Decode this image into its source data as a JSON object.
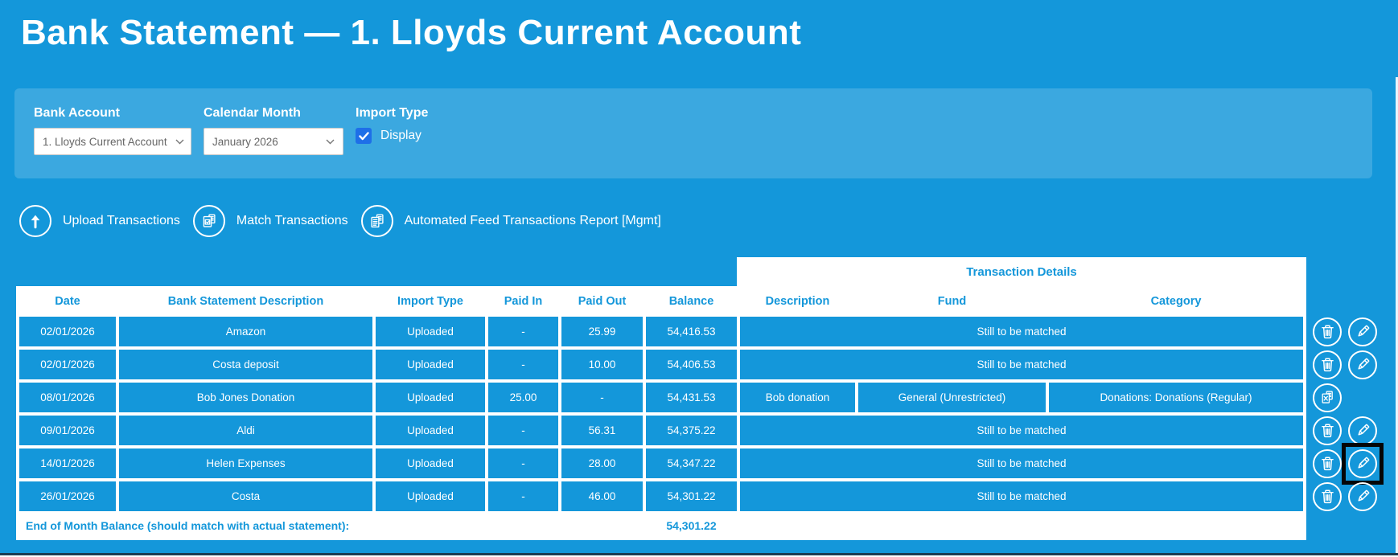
{
  "page": {
    "title": "Bank Statement — 1. Lloyds Current Account"
  },
  "filters": {
    "bank_account": {
      "label": "Bank Account",
      "value": "1. Lloyds Current Account"
    },
    "calendar_month": {
      "label": "Calendar Month",
      "value": "January 2026"
    },
    "import_type": {
      "label": "Import Type",
      "checkbox_label": "Display",
      "checked": true
    }
  },
  "actions": [
    {
      "icon": "upload-icon",
      "label": "Upload Transactions"
    },
    {
      "icon": "match-icon",
      "label": "Match Transactions"
    },
    {
      "icon": "report-icon",
      "label": "Automated Feed Transactions Report [Mgmt]"
    }
  ],
  "table": {
    "group_header": "Transaction Details",
    "columns": [
      "Date",
      "Bank Statement Description",
      "Import Type",
      "Paid In",
      "Paid Out",
      "Balance",
      "Description",
      "Fund",
      "Category"
    ],
    "rows": [
      {
        "date": "02/01/2026",
        "description": "Amazon",
        "import_type": "Uploaded",
        "paid_in": "-",
        "paid_out": "25.99",
        "balance": "54,416.53",
        "matched": false,
        "match_status": "Still to be matched",
        "actions": [
          "delete",
          "edit"
        ]
      },
      {
        "date": "02/01/2026",
        "description": "Costa deposit",
        "import_type": "Uploaded",
        "paid_in": "-",
        "paid_out": "10.00",
        "balance": "54,406.53",
        "matched": false,
        "match_status": "Still to be matched",
        "actions": [
          "delete",
          "edit"
        ]
      },
      {
        "date": "08/01/2026",
        "description": "Bob Jones Donation",
        "import_type": "Uploaded",
        "paid_in": "25.00",
        "paid_out": "-",
        "balance": "54,431.53",
        "matched": true,
        "details": {
          "description": "Bob donation",
          "fund": "General (Unrestricted)",
          "category": "Donations: Donations (Regular)"
        },
        "actions": [
          "matched-file"
        ]
      },
      {
        "date": "09/01/2026",
        "description": "Aldi",
        "import_type": "Uploaded",
        "paid_in": "-",
        "paid_out": "56.31",
        "balance": "54,375.22",
        "matched": false,
        "match_status": "Still to be matched",
        "actions": [
          "delete",
          "edit"
        ]
      },
      {
        "date": "14/01/2026",
        "description": "Helen Expenses",
        "import_type": "Uploaded",
        "paid_in": "-",
        "paid_out": "28.00",
        "balance": "54,347.22",
        "matched": false,
        "match_status": "Still to be matched",
        "actions": [
          "delete",
          "edit"
        ],
        "edit_highlighted": true
      },
      {
        "date": "26/01/2026",
        "description": "Costa",
        "import_type": "Uploaded",
        "paid_in": "-",
        "paid_out": "46.00",
        "balance": "54,301.22",
        "matched": false,
        "match_status": "Still to be matched",
        "actions": [
          "delete",
          "edit"
        ]
      }
    ],
    "footer": {
      "label": "End of Month Balance (should match with actual statement):",
      "value": "54,301.22"
    }
  },
  "theme": {
    "primary": "#1497DA",
    "panel_bg": "#3BA8E0",
    "checkbox_blue": "#1E6FE8",
    "table_header_text": "#1497DA",
    "footer_line": "#1D3D52"
  }
}
